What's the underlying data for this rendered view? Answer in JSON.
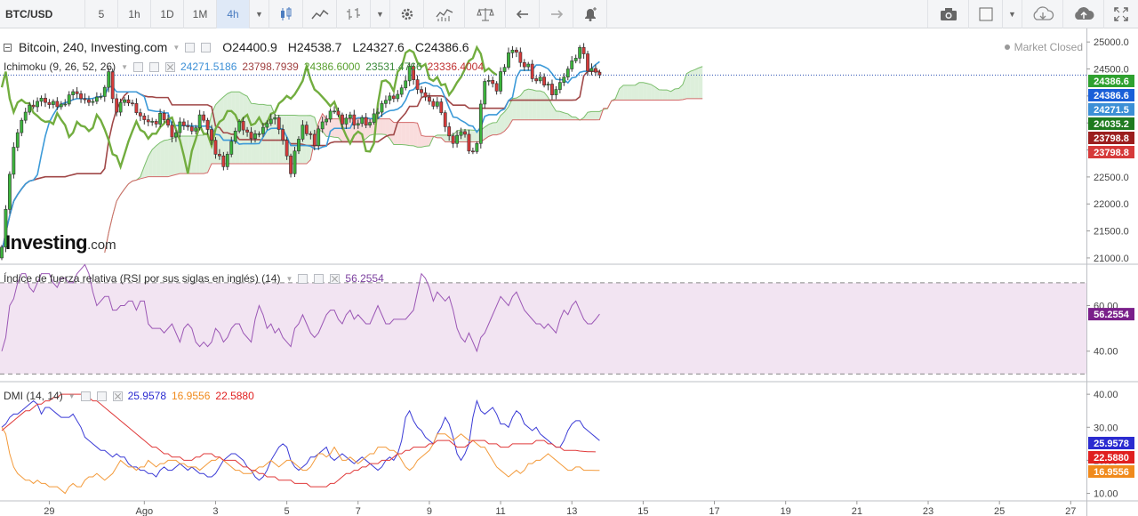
{
  "toolbar": {
    "symbol": "BTC/USD",
    "intervals": [
      "5",
      "1h",
      "1D",
      "1M",
      "4h"
    ],
    "active_interval": "4h"
  },
  "main_legend": {
    "title": "Bitcoin, 240, Investing.com",
    "open": "O24400.9",
    "high": "H24538.7",
    "low": "L24327.6",
    "close": "C24386.6"
  },
  "ichimoku_legend": {
    "title": "Ichimoku (9, 26, 52, 26)",
    "values": [
      "24271.5186",
      "23798.7939",
      "24386.6000",
      "23531.4766",
      "23336.4004"
    ],
    "colors": [
      "#3c8fd6",
      "#a04040",
      "#59a02f",
      "#3a8a3a",
      "#c03030"
    ]
  },
  "rsi_legend": {
    "title": "Índice de fuerza relativa (RSI por sus siglas en inglés) (14)",
    "value": "56.2554"
  },
  "dmi_legend": {
    "title": "DMI (14, 14)",
    "values": [
      "25.9578",
      "16.9556",
      "22.5880"
    ],
    "colors": [
      "#2b2bd0",
      "#f08a1c",
      "#e02020"
    ]
  },
  "market_status": "Market Closed",
  "logo": {
    "bold": "Investing",
    "light": ".com"
  },
  "chart_data": [
    {
      "type": "candlestick",
      "title": "Bitcoin, 240, Investing.com",
      "ylim": [
        20900,
        25250
      ],
      "yticks": [
        21000,
        21500,
        22000,
        22500,
        23000,
        23500,
        24000,
        24500,
        25000
      ],
      "x_labels": [
        {
          "t": 12,
          "label": "29"
        },
        {
          "t": 36,
          "label": "Ago"
        },
        {
          "t": 54,
          "label": "3"
        },
        {
          "t": 72,
          "label": "5"
        },
        {
          "t": 90,
          "label": "7"
        },
        {
          "t": 108,
          "label": "9"
        },
        {
          "t": 126,
          "label": "11"
        },
        {
          "t": 144,
          "label": "13"
        },
        {
          "t": 162,
          "label": "15"
        },
        {
          "t": 180,
          "label": "17"
        },
        {
          "t": 198,
          "label": "19"
        },
        {
          "t": 216,
          "label": "21"
        },
        {
          "t": 234,
          "label": "23"
        },
        {
          "t": 252,
          "label": "25"
        },
        {
          "t": 270,
          "label": "27"
        }
      ],
      "closes": [
        21200,
        21900,
        22550,
        23050,
        23320,
        23550,
        23700,
        23830,
        23800,
        23900,
        23960,
        23880,
        23840,
        23900,
        23800,
        23850,
        23850,
        24020,
        24080,
        24040,
        23950,
        23930,
        23880,
        23900,
        23980,
        23990,
        24160,
        24450,
        23950,
        23700,
        23880,
        23930,
        23870,
        23860,
        23690,
        23630,
        23560,
        23520,
        23530,
        23480,
        23680,
        23560,
        23460,
        23240,
        23320,
        23520,
        23450,
        23430,
        23350,
        23410,
        23650,
        23550,
        23380,
        23180,
        22920,
        22890,
        22690,
        22920,
        23160,
        23350,
        23530,
        23370,
        23330,
        23210,
        23300,
        23300,
        23420,
        23490,
        23570,
        23600,
        23380,
        23180,
        22890,
        22560,
        22980,
        23200,
        23460,
        23300,
        23290,
        23080,
        23390,
        23520,
        23570,
        23720,
        23720,
        23650,
        23480,
        23590,
        23650,
        23460,
        23490,
        23600,
        23460,
        23510,
        23670,
        23700,
        23860,
        23920,
        24000,
        23950,
        24030,
        24150,
        24280,
        24550,
        24300,
        24120,
        24060,
        23980,
        23900,
        23810,
        23890,
        23690,
        23430,
        23260,
        23120,
        23270,
        23340,
        23290,
        22980,
        22970,
        23120,
        23850,
        24270,
        24290,
        24230,
        24090,
        24450,
        24530,
        24800,
        24850,
        24810,
        24620,
        24540,
        24590,
        24320,
        24280,
        24350,
        24200,
        24220,
        24020,
        24120,
        24250,
        24350,
        24500,
        24650,
        24700,
        24900,
        24780,
        24460,
        24510,
        24440,
        24390
      ],
      "mark_levels": [
        24386.6,
        24386.6,
        24271.5,
        24035.2,
        23798.8,
        23798.8
      ],
      "mark_colors": [
        "#2fa12f",
        "#1a5fd8",
        "#3c8fd6",
        "#1e7a1e",
        "#9b1e1e",
        "#d63a3a"
      ],
      "last_close": 24386.6
    },
    {
      "type": "line",
      "title": "Índice de fuerza relativa (RSI por sus siglas en inglés) (14)",
      "ylim": [
        27,
        77
      ],
      "yticks": [
        40,
        60
      ],
      "bands": [
        30,
        70
      ],
      "values": [
        40,
        46,
        60,
        63,
        70,
        74,
        74,
        68,
        66,
        70,
        74,
        74,
        74,
        70,
        68,
        72,
        72,
        70,
        70,
        74,
        76,
        78,
        74,
        66,
        60,
        62,
        64,
        64,
        58,
        58,
        60,
        60,
        62,
        62,
        58,
        62,
        62,
        52,
        50,
        50,
        50,
        48,
        50,
        52,
        48,
        44,
        50,
        52,
        50,
        44,
        42,
        44,
        42,
        44,
        50,
        48,
        44,
        46,
        50,
        52,
        52,
        48,
        46,
        44,
        54,
        60,
        56,
        50,
        52,
        48,
        50,
        46,
        44,
        42,
        50,
        52,
        56,
        52,
        48,
        46,
        48,
        52,
        56,
        58,
        58,
        54,
        52,
        56,
        58,
        54,
        56,
        54,
        52,
        52,
        56,
        60,
        56,
        52,
        52,
        54,
        54,
        54,
        54,
        56,
        58,
        66,
        74,
        72,
        68,
        62,
        66,
        64,
        62,
        64,
        58,
        50,
        46,
        44,
        48,
        44,
        40,
        46,
        48,
        52,
        56,
        60,
        64,
        62,
        60,
        64,
        66,
        62,
        58,
        56,
        54,
        52,
        52,
        50,
        52,
        50,
        48,
        54,
        58,
        56,
        60,
        62,
        58,
        54,
        52,
        52,
        54,
        56.2554
      ],
      "last_value": 56.2554
    },
    {
      "type": "line",
      "title": "DMI (14, 14)",
      "ylim": [
        8,
        43
      ],
      "yticks": [
        10,
        20,
        30,
        40
      ],
      "series": [
        {
          "name": "25.9578",
          "color": "#3b3bd6",
          "values": [
            30,
            31,
            33,
            34,
            34,
            35,
            36,
            37,
            38,
            37,
            34,
            36,
            36,
            35,
            34,
            33,
            33,
            33,
            34,
            32,
            30,
            27,
            26,
            25,
            24,
            23,
            23,
            22,
            21,
            22,
            21,
            21,
            19,
            18,
            18,
            17,
            17,
            16,
            16,
            15,
            17,
            18,
            17,
            17,
            18,
            19,
            18,
            17,
            18,
            17,
            16,
            16,
            15,
            15,
            16,
            18,
            20,
            21,
            22,
            22,
            21,
            20,
            18,
            17,
            15,
            14,
            15,
            17,
            20,
            22,
            24,
            25,
            24,
            20,
            18,
            17,
            18,
            19,
            21,
            21,
            22,
            23,
            24,
            21,
            20,
            21,
            22,
            21,
            20,
            19,
            20,
            21,
            20,
            19,
            18,
            17,
            18,
            20,
            21,
            20,
            22,
            26,
            33,
            35,
            32,
            30,
            29,
            27,
            26,
            25,
            28,
            30,
            33,
            31,
            27,
            22,
            20,
            22,
            25,
            33,
            38,
            35,
            34,
            35,
            36,
            34,
            31,
            31,
            30,
            33,
            35,
            34,
            31,
            30,
            29,
            30,
            28,
            27,
            26,
            25,
            24,
            24,
            26,
            29,
            31,
            32,
            32,
            30,
            29,
            28,
            27,
            25.9578
          ]
        },
        {
          "name": "16.9556",
          "color": "#f39a3a",
          "values": [
            30,
            28,
            22,
            18,
            16,
            15,
            14,
            14,
            13,
            14,
            13,
            13,
            12,
            12,
            12,
            11,
            10,
            12,
            13,
            12,
            12,
            14,
            15,
            15,
            16,
            15,
            14,
            15,
            16,
            18,
            20,
            19,
            18,
            18,
            17,
            18,
            18,
            20,
            19,
            18,
            19,
            19,
            20,
            20,
            20,
            19,
            19,
            18,
            18,
            18,
            17,
            18,
            19,
            20,
            20,
            21,
            20,
            19,
            18,
            17,
            17,
            16,
            16,
            16,
            17,
            18,
            18,
            19,
            20,
            19,
            18,
            19,
            20,
            20,
            19,
            18,
            17,
            17,
            18,
            20,
            22,
            22,
            21,
            22,
            24,
            22,
            20,
            20,
            21,
            20,
            19,
            20,
            21,
            22,
            22,
            24,
            24,
            24,
            23,
            23,
            22,
            20,
            18,
            17,
            18,
            20,
            21,
            22,
            23,
            25,
            28,
            28,
            28,
            27,
            26,
            27,
            28,
            27,
            26,
            26,
            25,
            24,
            24,
            22,
            20,
            18,
            17,
            16,
            15,
            16,
            17,
            16,
            17,
            19,
            19,
            20,
            20,
            21,
            22,
            21,
            20,
            19,
            18,
            17,
            17,
            18,
            18,
            17,
            17,
            17,
            16.9556,
            16.9556
          ]
        },
        {
          "name": "22.5880",
          "color": "#e03a3a",
          "values": [
            29,
            30,
            31,
            32,
            33,
            34,
            35,
            35,
            36,
            37,
            37,
            38,
            38,
            39,
            39,
            40,
            40,
            40,
            40,
            40,
            40,
            39,
            39,
            38,
            38,
            37,
            36,
            35,
            34,
            33,
            32,
            31,
            30,
            29,
            28,
            27,
            26,
            25,
            24,
            24,
            23,
            22,
            22,
            21,
            21,
            21,
            20,
            20,
            20,
            21,
            21,
            22,
            22,
            22,
            21,
            21,
            20,
            20,
            20,
            20,
            19,
            18,
            18,
            17,
            17,
            16,
            16,
            15,
            15,
            15,
            14,
            14,
            14,
            14,
            13,
            13,
            13,
            13,
            12,
            12,
            12,
            12,
            12,
            13,
            13,
            14,
            15,
            16,
            16,
            17,
            17,
            18,
            18,
            19,
            19,
            19,
            20,
            20,
            20,
            21,
            22,
            22,
            23,
            23,
            24,
            24,
            24,
            24,
            25,
            25,
            26,
            26,
            26,
            26,
            25,
            24,
            24,
            24,
            25,
            26,
            26,
            26,
            26,
            25,
            25,
            25,
            24,
            24,
            24,
            25,
            25,
            25,
            25,
            25,
            25,
            26,
            26,
            26,
            25,
            25,
            24,
            24,
            23,
            23,
            23,
            23,
            22.8,
            22.7,
            22.6,
            22.6,
            22.588
          ]
        }
      ]
    }
  ]
}
